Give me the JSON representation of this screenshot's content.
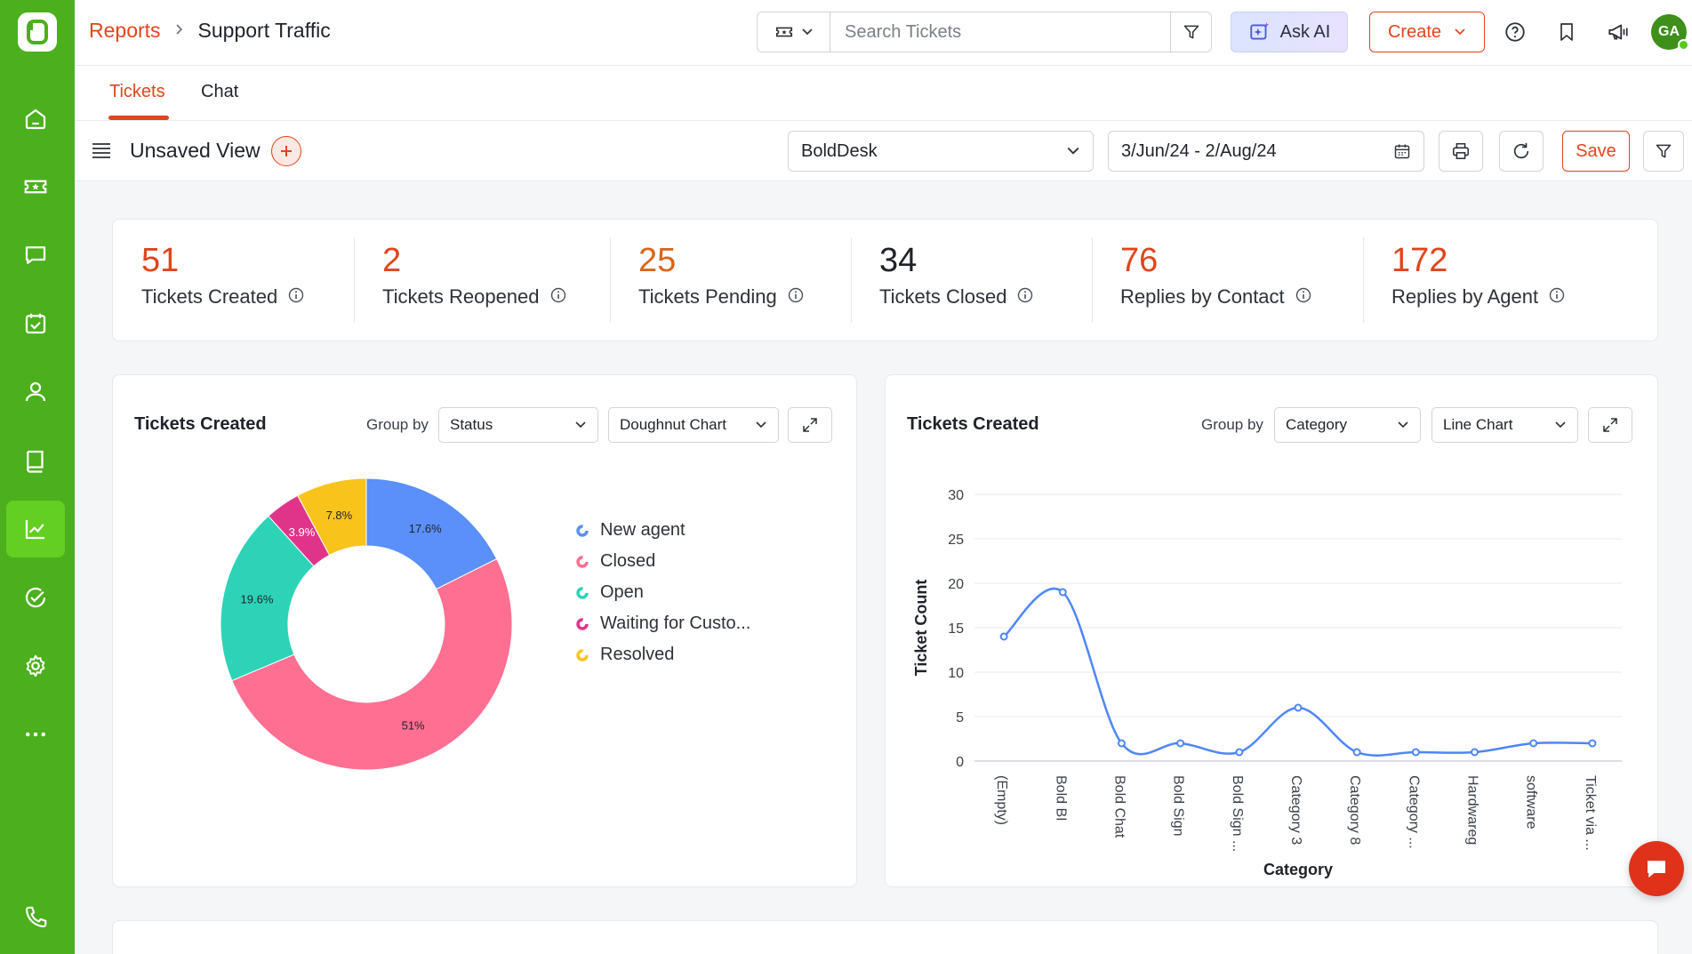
{
  "header": {
    "breadcrumb_parent": "Reports",
    "breadcrumb_current": "Support Traffic",
    "search_placeholder": "Search Tickets",
    "ask_ai_label": "Ask AI",
    "create_label": "Create",
    "avatar_initials": "GA"
  },
  "sidebar": {
    "items": [
      {
        "icon": "home-icon"
      },
      {
        "icon": "ticket-icon"
      },
      {
        "icon": "chat-icon"
      },
      {
        "icon": "tasks-icon"
      },
      {
        "icon": "contacts-icon"
      },
      {
        "icon": "knowledge-base-icon"
      },
      {
        "icon": "reports-icon",
        "active": true
      },
      {
        "icon": "activities-icon"
      },
      {
        "icon": "settings-icon"
      },
      {
        "icon": "more-icon"
      },
      {
        "icon": "phone-icon"
      }
    ]
  },
  "tabs": [
    {
      "label": "Tickets",
      "active": true
    },
    {
      "label": "Chat",
      "active": false
    }
  ],
  "viewbar": {
    "title": "Unsaved View",
    "brand_select": "BoldDesk",
    "date_range": "3/Jun/24 - 2/Aug/24",
    "save_label": "Save"
  },
  "stats": [
    {
      "value": "51",
      "label": "Tickets Created",
      "color": "#e0451d"
    },
    {
      "value": "2",
      "label": "Tickets Reopened",
      "color": "#e0451d"
    },
    {
      "value": "25",
      "label": "Tickets Pending",
      "color": "#d9661a"
    },
    {
      "value": "34",
      "label": "Tickets Closed",
      "color": "#1f2329"
    },
    {
      "value": "76",
      "label": "Replies by Contact",
      "color": "#e0451d"
    },
    {
      "value": "172",
      "label": "Replies by Agent",
      "color": "#e0451d"
    }
  ],
  "left_card": {
    "title": "Tickets Created",
    "group_by_label": "Group by",
    "group_by_value": "Status",
    "chart_type_value": "Doughnut Chart"
  },
  "right_card": {
    "title": "Tickets Created",
    "group_by_label": "Group by",
    "group_by_value": "Category",
    "chart_type_value": "Line Chart"
  },
  "chart_data": [
    {
      "type": "pie",
      "subtype": "doughnut",
      "title": "Tickets Created",
      "slices": [
        {
          "label": "New agent",
          "value": 17.6,
          "display": "17.6%",
          "color": "#5b8ff9"
        },
        {
          "label": "Closed",
          "value": 51,
          "display": "51%",
          "color": "#ff6f91"
        },
        {
          "label": "Open",
          "value": 19.6,
          "display": "19.6%",
          "color": "#2ed3b7"
        },
        {
          "label": "Waiting for Custo...",
          "value": 3.9,
          "display": "3.9%",
          "color": "#e0348b"
        },
        {
          "label": "Resolved",
          "value": 7.8,
          "display": "7.8%",
          "color": "#f8c41c"
        }
      ],
      "legend_position": "right"
    },
    {
      "type": "line",
      "title": "Tickets Created",
      "xlabel": "Category",
      "ylabel": "Ticket Count",
      "categories": [
        "(Empty)",
        "Bold BI",
        "Bold Chat",
        "Bold Sign",
        "Bold Sign ...",
        "Category 3",
        "Category 8",
        "Category ...",
        "Hardwareg",
        "software",
        "Ticket via ..."
      ],
      "series": [
        {
          "values": [
            14,
            19,
            2,
            2,
            1,
            6,
            1,
            1,
            1,
            2,
            2
          ],
          "color": "#4e86f7"
        }
      ],
      "ylim": [
        0,
        30
      ],
      "yticks": [
        0,
        5,
        10,
        15,
        20,
        25,
        30
      ],
      "grid": true,
      "smooth": true
    }
  ]
}
